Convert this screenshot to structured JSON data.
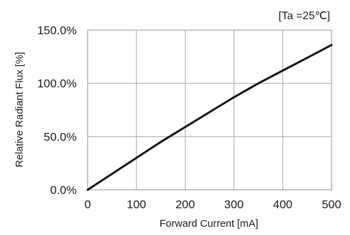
{
  "condition_label": "[Ta =25℃]",
  "chart_data": {
    "type": "line",
    "title": "",
    "xlabel": "Forward Current [mA]",
    "ylabel": "Relative Radiant Flux [%]",
    "xlim": [
      0,
      500
    ],
    "ylim": [
      0,
      150
    ],
    "x_ticks": [
      0,
      100,
      200,
      300,
      400,
      500
    ],
    "x_tick_labels": [
      "0",
      "100",
      "200",
      "300",
      "400",
      "500"
    ],
    "y_ticks": [
      0,
      50,
      100,
      150
    ],
    "y_tick_labels": [
      "0.0%",
      "50.0%",
      "100.0%",
      "150.0%"
    ],
    "grid": true,
    "line_color": "#111111",
    "grid_color": "#a6a6a6",
    "series": [
      {
        "x": [
          0,
          50,
          100,
          150,
          200,
          250,
          300,
          350,
          400,
          450,
          500
        ],
        "y": [
          0,
          15,
          30,
          45,
          59,
          73,
          87,
          100,
          112,
          124,
          136
        ]
      }
    ]
  }
}
